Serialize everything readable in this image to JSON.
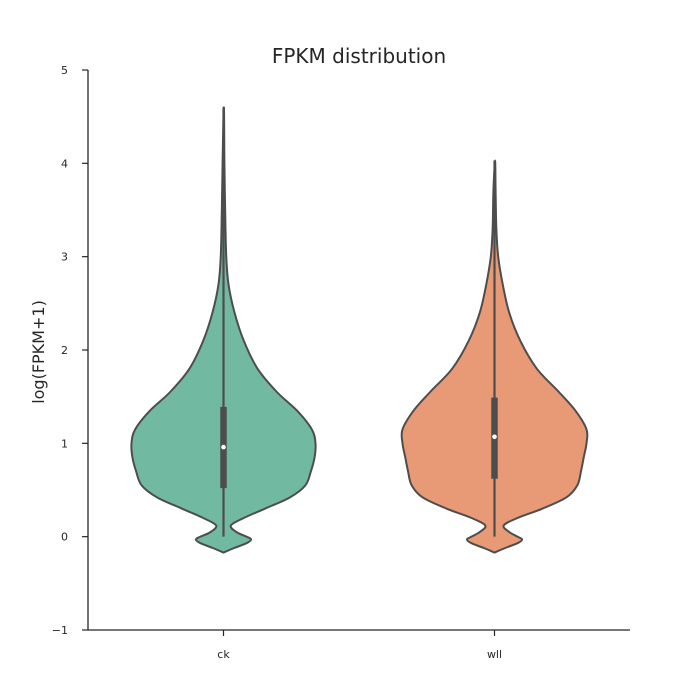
{
  "chart_data": {
    "type": "violin",
    "title": "FPKM distribution",
    "xlabel": "",
    "ylabel": "log(FPKM+1)",
    "ylim": [
      -1,
      5
    ],
    "yticks": [
      "5",
      "4",
      "3",
      "2",
      "1",
      "0",
      "−1"
    ],
    "grid": false,
    "categories": [
      "ck",
      "wll"
    ],
    "series": [
      {
        "category": "ck",
        "color": "#72b9a2",
        "min": 0.0,
        "q1": 0.52,
        "median": 0.96,
        "q3": 1.39,
        "max": 4.6,
        "density": [
          [
            -0.17,
            0.0
          ],
          [
            -0.12,
            0.12
          ],
          [
            -0.07,
            0.25
          ],
          [
            -0.03,
            0.3
          ],
          [
            0.0,
            0.25
          ],
          [
            0.05,
            0.14
          ],
          [
            0.12,
            0.08
          ],
          [
            0.2,
            0.22
          ],
          [
            0.3,
            0.45
          ],
          [
            0.42,
            0.72
          ],
          [
            0.55,
            0.89
          ],
          [
            0.7,
            0.95
          ],
          [
            0.85,
            0.99
          ],
          [
            1.0,
            1.0
          ],
          [
            1.15,
            0.96
          ],
          [
            1.35,
            0.8
          ],
          [
            1.55,
            0.58
          ],
          [
            1.8,
            0.37
          ],
          [
            2.1,
            0.22
          ],
          [
            2.4,
            0.12
          ],
          [
            2.7,
            0.055
          ],
          [
            3.0,
            0.03
          ],
          [
            3.5,
            0.018
          ],
          [
            4.0,
            0.01
          ],
          [
            4.6,
            0.004
          ]
        ]
      },
      {
        "category": "wll",
        "color": "#e89975",
        "min": 0.0,
        "q1": 0.62,
        "median": 1.07,
        "q3": 1.49,
        "max": 4.03,
        "density": [
          [
            -0.17,
            0.0
          ],
          [
            -0.12,
            0.12
          ],
          [
            -0.07,
            0.25
          ],
          [
            -0.03,
            0.3
          ],
          [
            0.0,
            0.25
          ],
          [
            0.05,
            0.16
          ],
          [
            0.12,
            0.1
          ],
          [
            0.2,
            0.25
          ],
          [
            0.3,
            0.52
          ],
          [
            0.42,
            0.78
          ],
          [
            0.55,
            0.9
          ],
          [
            0.7,
            0.94
          ],
          [
            0.85,
            0.97
          ],
          [
            1.0,
            1.0
          ],
          [
            1.15,
            1.0
          ],
          [
            1.35,
            0.88
          ],
          [
            1.55,
            0.7
          ],
          [
            1.8,
            0.46
          ],
          [
            2.1,
            0.28
          ],
          [
            2.4,
            0.16
          ],
          [
            2.7,
            0.09
          ],
          [
            3.0,
            0.04
          ],
          [
            3.3,
            0.02
          ],
          [
            3.7,
            0.012
          ],
          [
            4.03,
            0.006
          ]
        ]
      }
    ]
  }
}
